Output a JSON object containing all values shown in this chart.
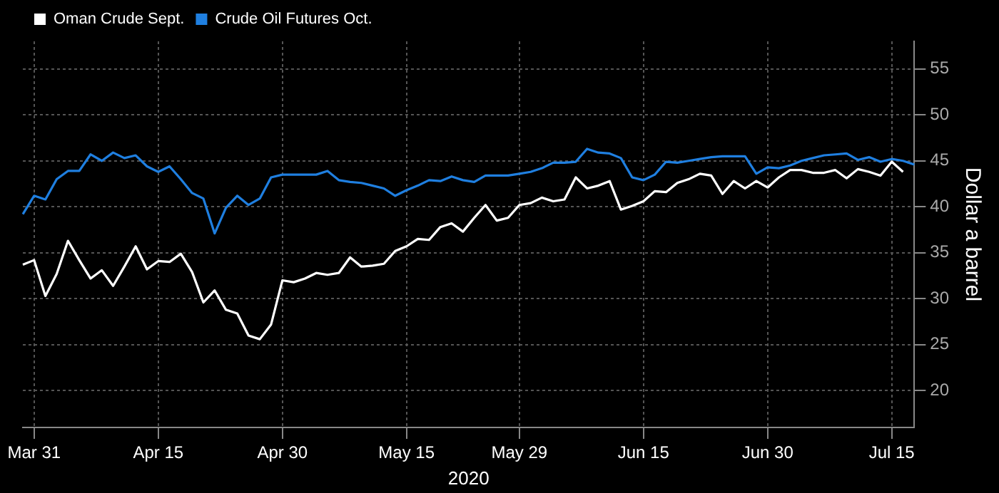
{
  "chart_data": {
    "type": "line",
    "xlabel": "2020",
    "ylabel": "Dollar a barrel",
    "categories": [
      null,
      "Mar 31",
      null,
      null,
      null,
      null,
      null,
      null,
      null,
      null,
      null,
      null,
      "Apr 15",
      null,
      null,
      null,
      null,
      null,
      null,
      null,
      null,
      null,
      null,
      "Apr 30",
      null,
      null,
      null,
      null,
      null,
      null,
      null,
      null,
      null,
      null,
      "May 15",
      null,
      null,
      null,
      null,
      null,
      null,
      null,
      null,
      null,
      "May 29",
      null,
      null,
      null,
      null,
      null,
      null,
      null,
      null,
      null,
      null,
      "Jun 15",
      null,
      null,
      null,
      null,
      null,
      null,
      null,
      null,
      null,
      null,
      "Jun 30",
      null,
      null,
      null,
      null,
      null,
      null,
      null,
      null,
      null,
      null,
      "Jul 15",
      null,
      null
    ],
    "series": [
      {
        "name": "Oman Crude Sept.",
        "color": "#ffffff",
        "values": [
          33.7,
          34.2,
          30.3,
          32.7,
          36.3,
          34.2,
          32.2,
          33.1,
          31.4,
          33.5,
          35.7,
          33.2,
          34.1,
          34.0,
          34.9,
          32.9,
          29.6,
          30.9,
          28.8,
          28.4,
          26.0,
          25.6,
          27.2,
          32.0,
          31.8,
          32.2,
          32.8,
          32.6,
          32.8,
          34.5,
          33.5,
          33.6,
          33.8,
          35.2,
          35.7,
          36.5,
          36.4,
          37.8,
          38.2,
          37.3,
          38.8,
          40.2,
          38.5,
          38.8,
          40.2,
          40.4,
          41.0,
          40.6,
          40.8,
          43.2,
          42.0,
          42.3,
          42.8,
          39.7,
          40.1,
          40.6,
          41.7,
          41.6,
          42.6,
          43.0,
          43.6,
          43.4,
          41.4,
          42.8,
          42.0,
          42.8,
          42.1,
          43.2,
          44.0,
          44.0,
          43.7,
          43.7,
          44.0,
          43.1,
          44.1,
          43.8,
          43.4,
          44.9,
          43.8,
          null
        ]
      },
      {
        "name": "Crude Oil Futures Oct.",
        "color": "#1f7fe0",
        "values": [
          39.2,
          41.2,
          40.8,
          43.0,
          43.9,
          43.9,
          45.7,
          45.0,
          45.9,
          45.3,
          45.6,
          44.4,
          43.8,
          44.4,
          43.0,
          41.5,
          40.9,
          37.1,
          39.9,
          41.2,
          40.2,
          40.9,
          43.2,
          43.5,
          43.5,
          43.5,
          43.5,
          43.9,
          42.9,
          42.7,
          42.6,
          42.3,
          42.0,
          41.2,
          41.8,
          42.3,
          42.9,
          42.8,
          43.3,
          42.9,
          42.7,
          43.4,
          43.4,
          43.4,
          43.6,
          43.8,
          44.2,
          44.8,
          44.8,
          44.9,
          46.3,
          45.9,
          45.8,
          45.3,
          43.2,
          42.9,
          43.5,
          44.9,
          44.8,
          45.0,
          45.2,
          45.4,
          45.5,
          45.5,
          45.5,
          43.6,
          44.3,
          44.2,
          44.5,
          45.0,
          45.3,
          45.6,
          45.7,
          45.8,
          45.1,
          45.4,
          44.9,
          45.2,
          45.0,
          44.6
        ]
      }
    ],
    "ylim": [
      16,
      58
    ],
    "yticks": [
      20,
      25,
      30,
      35,
      40,
      45,
      50,
      55
    ],
    "grid": true,
    "legend": "top left",
    "marker": "none",
    "line_style": "solid"
  }
}
